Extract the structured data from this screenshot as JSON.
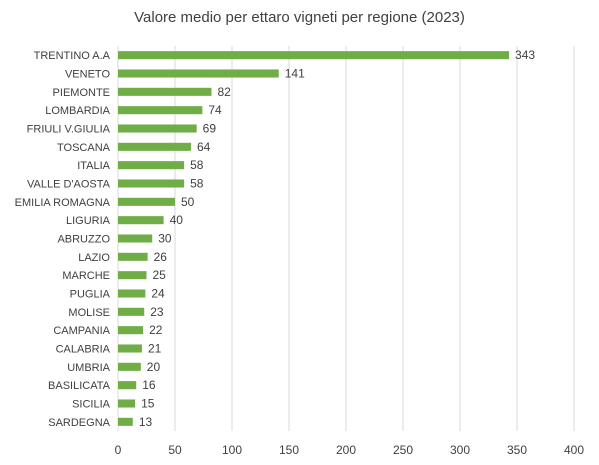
{
  "chart_data": {
    "type": "bar",
    "orientation": "horizontal",
    "title": "Valore medio per ettaro vigneti per regione (2023)",
    "categories": [
      "TRENTINO A.A",
      "VENETO",
      "PIEMONTE",
      "LOMBARDIA",
      "FRIULI V.GIULIA",
      "TOSCANA",
      "ITALIA",
      "VALLE D'AOSTA",
      "EMILIA ROMAGNA",
      "LIGURIA",
      "ABRUZZO",
      "LAZIO",
      "MARCHE",
      "PUGLIA",
      "MOLISE",
      "CAMPANIA",
      "CALABRIA",
      "UMBRIA",
      "BASILICATA",
      "SICILIA",
      "SARDEGNA"
    ],
    "values": [
      343,
      141,
      82,
      74,
      69,
      64,
      58,
      58,
      50,
      40,
      30,
      26,
      25,
      24,
      23,
      22,
      21,
      20,
      16,
      15,
      13
    ],
    "xlim": [
      0,
      400
    ],
    "xticks": [
      0,
      50,
      100,
      150,
      200,
      250,
      300,
      350,
      400
    ],
    "bar_color": "#70AD47",
    "grid": true,
    "legend": "none"
  }
}
